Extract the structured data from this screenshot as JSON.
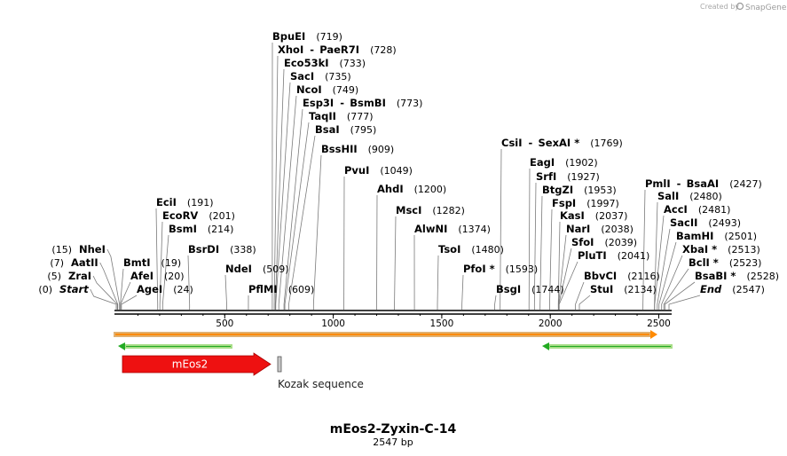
{
  "credit": {
    "created_by": "Created by",
    "brand": "SnapGene"
  },
  "map": {
    "title": "mEos2-Zyxin-C-14",
    "size_label": "2547 bp",
    "length": 2547,
    "ticks": [
      500,
      1000,
      1500,
      2000,
      2500
    ]
  },
  "sites": [
    {
      "name": "BpuEI",
      "pos": "(719)",
      "site": 719
    },
    {
      "name": "XhoI",
      "pos": "(728)",
      "site": 728,
      "alt": "PaeR7I"
    },
    {
      "name": "Eco53kI",
      "pos": "(733)",
      "site": 733
    },
    {
      "name": "SacI",
      "pos": "(735)",
      "site": 735
    },
    {
      "name": "NcoI",
      "pos": "(749)",
      "site": 749
    },
    {
      "name": "Esp3I",
      "pos": "(773)",
      "site": 773,
      "alt": "BsmBI"
    },
    {
      "name": "TaqII",
      "pos": "(777)",
      "site": 777
    },
    {
      "name": "BsaI",
      "pos": "(795)",
      "site": 795
    },
    {
      "name": "BssHII",
      "pos": "(909)",
      "site": 909
    },
    {
      "name": "PvuI",
      "pos": "(1049)",
      "site": 1049
    },
    {
      "name": "AhdI",
      "pos": "(1200)",
      "site": 1200
    },
    {
      "name": "MscI",
      "pos": "(1282)",
      "site": 1282
    },
    {
      "name": "AlwNI",
      "pos": "(1374)",
      "site": 1374
    },
    {
      "name": "TsoI",
      "pos": "(1480)",
      "site": 1480
    },
    {
      "name": "PfoI *",
      "pos": "(1593)",
      "site": 1593
    },
    {
      "name": "BsgI",
      "pos": "(1744)",
      "site": 1744
    },
    {
      "name": "CsiI",
      "pos": "(1769)",
      "site": 1769,
      "alt": "SexAI *"
    },
    {
      "name": "EagI",
      "pos": "(1902)",
      "site": 1902
    },
    {
      "name": "SrfI",
      "pos": "(1927)",
      "site": 1927
    },
    {
      "name": "BtgZI",
      "pos": "(1953)",
      "site": 1953
    },
    {
      "name": "FspI",
      "pos": "(1997)",
      "site": 1997
    },
    {
      "name": "KasI",
      "pos": "(2037)",
      "site": 2037
    },
    {
      "name": "NarI",
      "pos": "(2038)",
      "site": 2038
    },
    {
      "name": "SfoI",
      "pos": "(2039)",
      "site": 2039
    },
    {
      "name": "PluTI",
      "pos": "(2041)",
      "site": 2041
    },
    {
      "name": "BbvCI",
      "pos": "(2116)",
      "site": 2116
    },
    {
      "name": "StuI",
      "pos": "(2134)",
      "site": 2134
    },
    {
      "name": "PmlI",
      "pos": "(2427)",
      "site": 2427,
      "alt": "BsaAI"
    },
    {
      "name": "SalI",
      "pos": "(2480)",
      "site": 2480
    },
    {
      "name": "AccI",
      "pos": "(2481)",
      "site": 2481
    },
    {
      "name": "SacII",
      "pos": "(2493)",
      "site": 2493
    },
    {
      "name": "BamHI",
      "pos": "(2501)",
      "site": 2501
    },
    {
      "name": "XbaI *",
      "pos": "(2513)",
      "site": 2513
    },
    {
      "name": "BclI *",
      "pos": "(2523)",
      "site": 2523
    },
    {
      "name": "BsaBI *",
      "pos": "(2528)",
      "site": 2528
    },
    {
      "name": "End",
      "pos": "(2547)",
      "site": 2547,
      "italic": true
    },
    {
      "name": "EciI",
      "pos": "(191)",
      "site": 191
    },
    {
      "name": "EcoRV",
      "pos": "(201)",
      "site": 201
    },
    {
      "name": "BsmI",
      "pos": "(214)",
      "site": 214
    },
    {
      "name": "BsrDI",
      "pos": "(338)",
      "site": 338
    },
    {
      "name": "NdeI",
      "pos": "(509)",
      "site": 509
    },
    {
      "name": "PflMI",
      "pos": "(609)",
      "site": 609
    },
    {
      "name": "BmtI",
      "pos": "(19)",
      "site": 19
    },
    {
      "name": "AfeI",
      "pos": "(20)",
      "site": 20
    },
    {
      "name": "AgeI",
      "pos": "(24)",
      "site": 24
    },
    {
      "name": "NheI",
      "pos": "(15)",
      "site": 15
    },
    {
      "name": "AatII",
      "pos": "(7)",
      "site": 7
    },
    {
      "name": "ZraI",
      "pos": "(5)",
      "site": 5
    },
    {
      "name": "Start",
      "pos": "(0)",
      "site": 0,
      "italic": true
    }
  ],
  "features": [
    {
      "name": "mEos2",
      "kind": "cds",
      "start": 20,
      "end": 720,
      "color": "#ee1111",
      "direction": "forward"
    },
    {
      "name": "Kozak sequence",
      "kind": "misc",
      "start": 745,
      "end": 754,
      "color": "#c8c8c8"
    },
    {
      "name": "",
      "kind": "orf",
      "start": 0,
      "end": 2547,
      "color": "#ff8a00",
      "direction": "forward"
    },
    {
      "name": "",
      "kind": "orf",
      "start": 0,
      "end": 540,
      "color": "#22aa22",
      "direction": "reverse"
    },
    {
      "name": "",
      "kind": "orf",
      "start": 1970,
      "end": 2547,
      "color": "#22aa22",
      "direction": "reverse"
    }
  ]
}
